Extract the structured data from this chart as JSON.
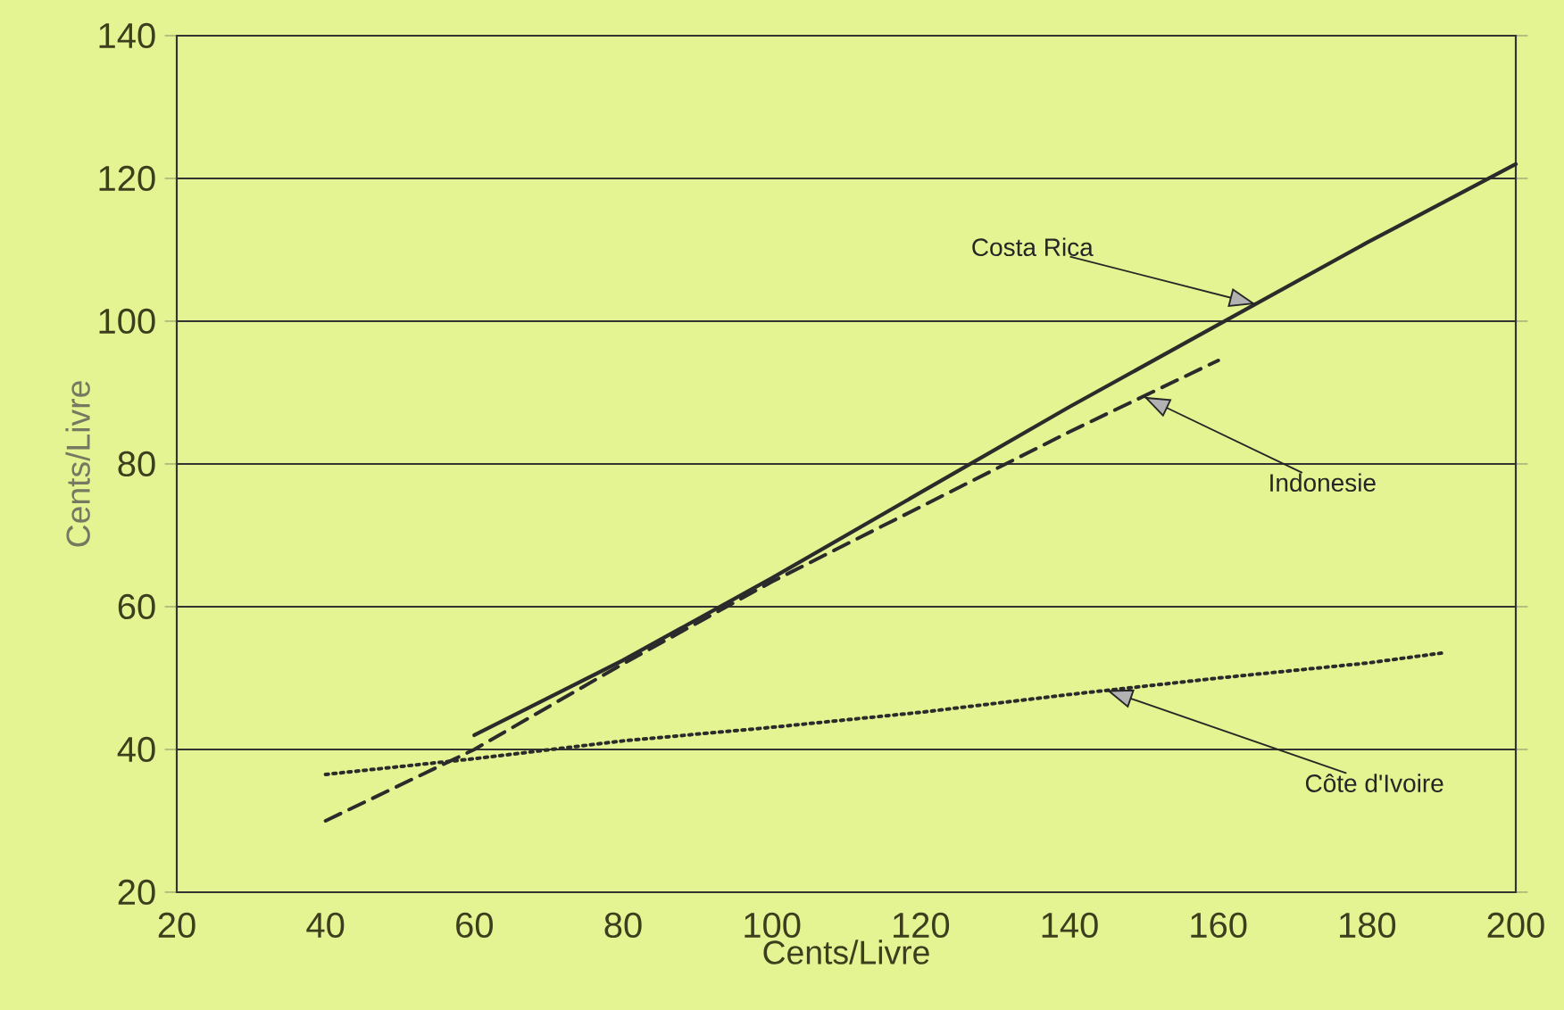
{
  "chart_data": {
    "type": "line",
    "xlabel": "Cents/Livre",
    "ylabel": "Cents/Livre",
    "xlim": [
      20,
      200
    ],
    "ylim": [
      20,
      140
    ],
    "xticks": [
      20,
      40,
      60,
      80,
      100,
      120,
      140,
      160,
      180,
      200
    ],
    "yticks": [
      20,
      40,
      60,
      80,
      100,
      120,
      140
    ],
    "grid": "y",
    "marker": "none",
    "series": [
      {
        "color": "#2b2b2b",
        "line_style": "solid",
        "x": [
          60,
          80,
          100,
          110,
          120,
          140,
          160,
          180,
          200
        ],
        "values": [
          42,
          52.5,
          64,
          70,
          76,
          88,
          99.5,
          111,
          122
        ]
      },
      {
        "color": "#2b2b2b",
        "line_style": "dashed",
        "x": [
          40,
          60,
          80,
          100,
          120,
          140,
          160
        ],
        "values": [
          30,
          40,
          52,
          63.5,
          74,
          84.5,
          94.5
        ]
      },
      {
        "color": "#2b2b2b",
        "line_style": "dotted",
        "x": [
          40,
          60,
          80,
          100,
          120,
          140,
          160,
          180,
          190
        ],
        "values": [
          36.5,
          38.7,
          41.2,
          43.1,
          45.2,
          47.7,
          50,
          52.1,
          53.5
        ]
      }
    ],
    "annotations": [
      {
        "text": "Costa Rica",
        "x": 165,
        "y": 102.4
      },
      {
        "text": "Indonesie",
        "x": 150,
        "y": 89.4
      },
      {
        "text": "Côte d'Ivoire",
        "x": 145,
        "y": 48.3
      }
    ]
  }
}
